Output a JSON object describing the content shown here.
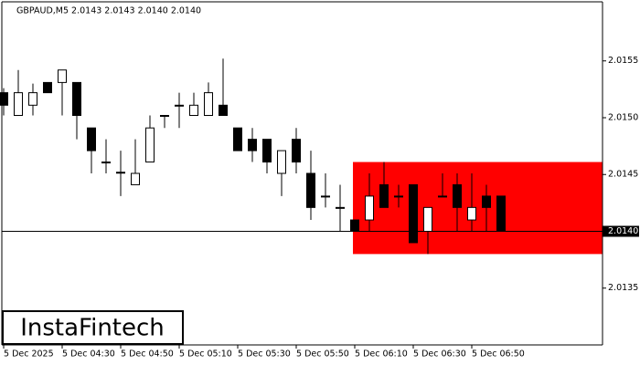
{
  "chart_data": {
    "type": "candlestick",
    "title": "GBPAUD,M5  2.0143 2.0143 2.0140 2.0140",
    "categories": [
      "5 Dec 2025",
      null,
      null,
      null,
      "5 Dec 04:30",
      null,
      null,
      null,
      "5 Dec 04:50",
      null,
      null,
      null,
      "5 Dec 05:10",
      null,
      null,
      null,
      "5 Dec 05:30",
      null,
      null,
      null,
      "5 Dec 05:50",
      null,
      null,
      null,
      "5 Dec 06:10",
      null,
      null,
      null,
      "5 Dec 06:30",
      null,
      null,
      null,
      "5 Dec 06:50",
      null,
      null
    ],
    "open": [
      2.01522,
      2.01502,
      2.01511,
      2.01531,
      2.01531,
      2.01531,
      2.01491,
      2.01461,
      2.01452,
      2.01441,
      2.01461,
      2.01502,
      2.01511,
      2.01502,
      2.01502,
      2.01511,
      2.01491,
      2.01481,
      2.01481,
      2.01451,
      2.01481,
      2.01451,
      2.01431,
      2.01421,
      2.0141,
      2.0141,
      2.01441,
      2.01431,
      2.01441,
      2.014,
      2.01431,
      2.01441,
      2.0141,
      2.01431,
      2.01431
    ],
    "high": [
      2.01526,
      2.01542,
      2.0153,
      2.01531,
      2.01542,
      2.01531,
      2.01491,
      2.01481,
      2.01471,
      2.01481,
      2.01502,
      2.01502,
      2.01522,
      2.01522,
      2.01531,
      2.01552,
      2.01491,
      2.01491,
      2.01481,
      2.01471,
      2.01491,
      2.01471,
      2.01451,
      2.01441,
      2.0141,
      2.01451,
      2.01461,
      2.01441,
      2.01441,
      2.01421,
      2.01451,
      2.01451,
      2.01451,
      2.01441,
      2.01431
    ],
    "low": [
      2.01502,
      2.01502,
      2.01502,
      2.01522,
      2.01502,
      2.01481,
      2.01451,
      2.01451,
      2.01431,
      2.01441,
      2.01461,
      2.01491,
      2.01491,
      2.01502,
      2.01502,
      2.01502,
      2.01471,
      2.01461,
      2.01451,
      2.01431,
      2.01451,
      2.0141,
      2.01421,
      2.014,
      2.014,
      2.014,
      2.01421,
      2.01421,
      2.0139,
      2.0138,
      2.01431,
      2.014,
      2.014,
      2.014,
      2.014
    ],
    "close": [
      2.01511,
      2.01522,
      2.01522,
      2.01522,
      2.01542,
      2.01502,
      2.01471,
      2.01461,
      2.01452,
      2.01451,
      2.01491,
      2.01502,
      2.01511,
      2.01511,
      2.01522,
      2.01502,
      2.01471,
      2.01471,
      2.01461,
      2.01471,
      2.01461,
      2.01421,
      2.01431,
      2.01421,
      2.014,
      2.01431,
      2.01421,
      2.01431,
      2.0139,
      2.01421,
      2.01431,
      2.01421,
      2.01421,
      2.01421,
      2.014
    ],
    "up_color": "#ffffff",
    "down_color": "#000000",
    "ylim": [
      2.013,
      2.01602
    ],
    "yticks": [
      2.0135,
      {
        "value": 2.014,
        "label": "2.0140"
      },
      2.0145,
      {
        "value": 2.015,
        "label": "2.0150"
      },
      2.0155
    ],
    "last_price": {
      "value": 2.014,
      "label": "2.0140"
    },
    "zone": {
      "from": "5 Dec 06:10",
      "high": 2.01461,
      "low": 2.0138,
      "color": "#ff0000"
    },
    "watermark": "InstaFintech"
  }
}
